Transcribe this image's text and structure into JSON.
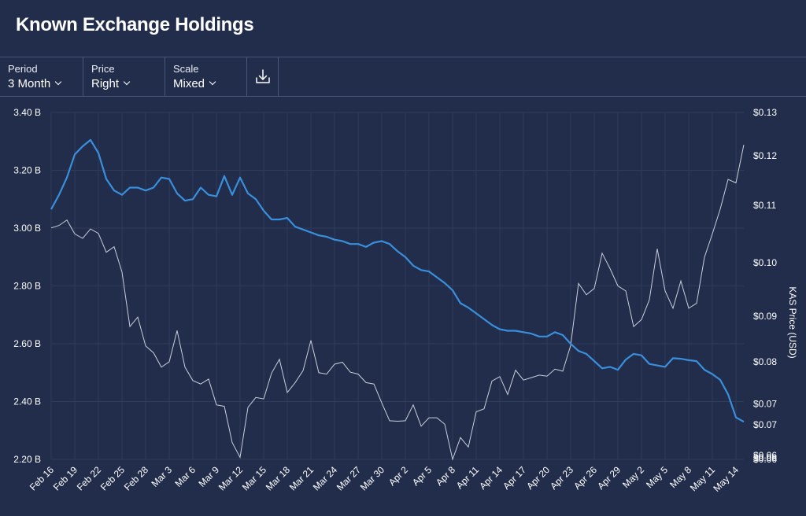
{
  "header": {
    "title": "Known Exchange Holdings"
  },
  "toolbar": {
    "period": {
      "label": "Period",
      "value": "3 Month"
    },
    "price": {
      "label": "Price",
      "value": "Right"
    },
    "scale": {
      "label": "Scale",
      "value": "Mixed"
    },
    "download_icon": "download-icon"
  },
  "colors": {
    "background": "#212d4a",
    "holdings_line": "#3a8fdd",
    "price_line": "#c9cfdc",
    "grid": "#2f3b5a"
  },
  "chart_data": {
    "type": "line",
    "title": "Known Exchange Holdings",
    "xlabel": "",
    "ylabel_left": "",
    "ylabel_right": "KAS Price (USD)",
    "grid": true,
    "legend": "none",
    "x_tick_labels": [
      "Feb 16",
      "Feb 19",
      "Feb 22",
      "Feb 25",
      "Feb 28",
      "Mar 3",
      "Mar 6",
      "Mar 9",
      "Mar 12",
      "Mar 15",
      "Mar 18",
      "Mar 21",
      "Mar 24",
      "Mar 27",
      "Mar 30",
      "Apr 2",
      "Apr 5",
      "Apr 8",
      "Apr 11",
      "Apr 14",
      "Apr 17",
      "Apr 20",
      "Apr 23",
      "Apr 26",
      "Apr 29",
      "May 2",
      "May 5",
      "May 8",
      "May 11",
      "May 14"
    ],
    "y_left_tick_labels": [
      "2.20 B",
      "2.40 B",
      "2.60 B",
      "2.80 B",
      "3.00 B",
      "3.20 B",
      "3.40 B"
    ],
    "y_left_range_billions": [
      2.2,
      3.4
    ],
    "y_right_tick_labels": [
      "$0.06",
      "$0.06",
      "$0.06",
      "$0.07",
      "$0.07",
      "$0.08",
      "$0.09",
      "$0.10",
      "$0.11",
      "$0.12",
      "$0.13"
    ],
    "y_right_range_usd": [
      0.06,
      0.13
    ],
    "x_range_days": [
      0,
      88
    ],
    "series": [
      {
        "key": "holdings",
        "axis": "left",
        "values": [
          3.065,
          3.115,
          3.175,
          3.255,
          3.283,
          3.305,
          3.26,
          3.17,
          3.13,
          3.115,
          3.14,
          3.14,
          3.13,
          3.14,
          3.175,
          3.17,
          3.12,
          3.095,
          3.1,
          3.14,
          3.115,
          3.11,
          3.18,
          3.115,
          3.175,
          3.12,
          3.1,
          3.06,
          3.03,
          3.03,
          3.035,
          3.005,
          2.995,
          2.985,
          2.975,
          2.97,
          2.96,
          2.955,
          2.945,
          2.945,
          2.935,
          2.95,
          2.955,
          2.945,
          2.92,
          2.9,
          2.87,
          2.855,
          2.85,
          2.83,
          2.81,
          2.785,
          2.74,
          2.725,
          2.705,
          2.685,
          2.665,
          2.65,
          2.645,
          2.645,
          2.64,
          2.635,
          2.625,
          2.625,
          2.64,
          2.63,
          2.6,
          2.575,
          2.565,
          2.54,
          2.515,
          2.52,
          2.51,
          2.545,
          2.565,
          2.56,
          2.53,
          2.525,
          2.52,
          2.55,
          2.548,
          2.543,
          2.54,
          2.51,
          2.495,
          2.475,
          2.425,
          2.345,
          2.33
        ]
      },
      {
        "key": "price",
        "axis": "right",
        "values": [
          0.1067,
          0.1072,
          0.1083,
          0.1055,
          0.1046,
          0.1065,
          0.1056,
          0.1018,
          0.1029,
          0.0978,
          0.0868,
          0.0887,
          0.0829,
          0.0815,
          0.0786,
          0.0797,
          0.086,
          0.0786,
          0.0759,
          0.0752,
          0.0762,
          0.071,
          0.0707,
          0.0634,
          0.0604,
          0.0705,
          0.0725,
          0.0722,
          0.0774,
          0.0802,
          0.0735,
          0.0755,
          0.0779,
          0.084,
          0.0775,
          0.0772,
          0.0792,
          0.0796,
          0.0776,
          0.0772,
          0.0755,
          0.0752,
          0.0714,
          0.0678,
          0.0677,
          0.0678,
          0.071,
          0.0667,
          0.0684,
          0.0684,
          0.0671,
          0.06,
          0.0644,
          0.0625,
          0.0696,
          0.0702,
          0.0758,
          0.0767,
          0.0731,
          0.078,
          0.076,
          0.0765,
          0.077,
          0.0768,
          0.0782,
          0.0778,
          0.083,
          0.0955,
          0.0932,
          0.0945,
          0.1016,
          0.0985,
          0.095,
          0.094,
          0.0868,
          0.0882,
          0.0922,
          0.1025,
          0.094,
          0.0905,
          0.096,
          0.0905,
          0.0915,
          0.1008,
          0.1055,
          0.1105,
          0.1165,
          0.1158,
          0.1235
        ]
      }
    ]
  }
}
